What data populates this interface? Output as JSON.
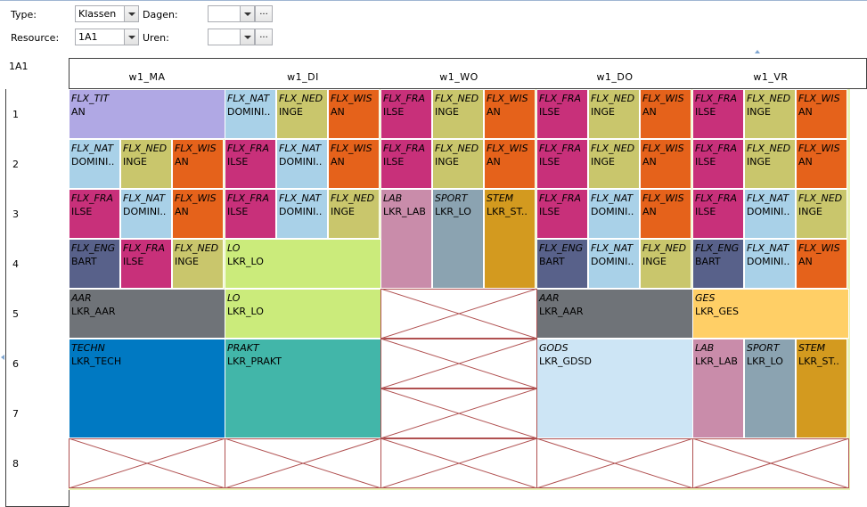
{
  "filters": {
    "type_label": "Type:",
    "type_value": "Klassen",
    "resource_label": "Resource:",
    "resource_value": "1A1",
    "dagen_label": "Dagen:",
    "dagen_value": "",
    "uren_label": "Uren:",
    "uren_value": "",
    "ellipsis": "..."
  },
  "resource_name": "1A1",
  "days": [
    "w1_MA",
    "w1_DI",
    "w1_WO",
    "w1_DO",
    "w1_VR"
  ],
  "hours": [
    "1",
    "2",
    "3",
    "4",
    "5",
    "6",
    "7",
    "8"
  ],
  "colors": {
    "purple": "#b0a8e4",
    "lightblue": "#a9d1e8",
    "olive": "#c9c66c",
    "orange": "#e5621b",
    "magenta": "#c8307a",
    "slate": "#58618a",
    "pink": "#c98caa",
    "greyblue": "#8ba3b1",
    "gold": "#d39a1f",
    "grey": "#6f7378",
    "lime": "#cbeb7b",
    "yellow": "#ffcf66",
    "blue": "#0079c2",
    "teal": "#42b6a9",
    "paleblue": "#cde5f5",
    "cross": "#b05050"
  },
  "lessons": [
    {
      "day": 0,
      "col": 0,
      "span": 3,
      "hour": 0,
      "rows": 1,
      "sub": "FLX_TIT",
      "main": "AN",
      "color": "purple"
    },
    {
      "day": 1,
      "col": 0,
      "span": 1,
      "hour": 0,
      "rows": 1,
      "sub": "FLX_NAT",
      "main": "DOMINI..",
      "color": "lightblue"
    },
    {
      "day": 1,
      "col": 1,
      "span": 1,
      "hour": 0,
      "rows": 1,
      "sub": "FLX_NED",
      "main": "INGE",
      "color": "olive"
    },
    {
      "day": 1,
      "col": 2,
      "span": 1,
      "hour": 0,
      "rows": 1,
      "sub": "FLX_WIS",
      "main": "AN",
      "color": "orange"
    },
    {
      "day": 2,
      "col": 0,
      "span": 1,
      "hour": 0,
      "rows": 1,
      "sub": "FLX_FRA",
      "main": "ILSE",
      "color": "magenta"
    },
    {
      "day": 2,
      "col": 1,
      "span": 1,
      "hour": 0,
      "rows": 1,
      "sub": "FLX_NED",
      "main": "INGE",
      "color": "olive"
    },
    {
      "day": 2,
      "col": 2,
      "span": 1,
      "hour": 0,
      "rows": 1,
      "sub": "FLX_WIS",
      "main": "AN",
      "color": "orange"
    },
    {
      "day": 3,
      "col": 0,
      "span": 1,
      "hour": 0,
      "rows": 1,
      "sub": "FLX_FRA",
      "main": "ILSE",
      "color": "magenta"
    },
    {
      "day": 3,
      "col": 1,
      "span": 1,
      "hour": 0,
      "rows": 1,
      "sub": "FLX_NED",
      "main": "INGE",
      "color": "olive"
    },
    {
      "day": 3,
      "col": 2,
      "span": 1,
      "hour": 0,
      "rows": 1,
      "sub": "FLX_WIS",
      "main": "AN",
      "color": "orange"
    },
    {
      "day": 4,
      "col": 0,
      "span": 1,
      "hour": 0,
      "rows": 1,
      "sub": "FLX_FRA",
      "main": "ILSE",
      "color": "magenta"
    },
    {
      "day": 4,
      "col": 1,
      "span": 1,
      "hour": 0,
      "rows": 1,
      "sub": "FLX_NED",
      "main": "INGE",
      "color": "olive"
    },
    {
      "day": 4,
      "col": 2,
      "span": 1,
      "hour": 0,
      "rows": 1,
      "sub": "FLX_WIS",
      "main": "AN",
      "color": "orange"
    },
    {
      "day": 0,
      "col": 0,
      "span": 1,
      "hour": 1,
      "rows": 1,
      "sub": "FLX_NAT",
      "main": "DOMINI..",
      "color": "lightblue"
    },
    {
      "day": 0,
      "col": 1,
      "span": 1,
      "hour": 1,
      "rows": 1,
      "sub": "FLX_NED",
      "main": "INGE",
      "color": "olive"
    },
    {
      "day": 0,
      "col": 2,
      "span": 1,
      "hour": 1,
      "rows": 1,
      "sub": "FLX_WIS",
      "main": "AN",
      "color": "orange"
    },
    {
      "day": 1,
      "col": 0,
      "span": 1,
      "hour": 1,
      "rows": 1,
      "sub": "FLX_FRA",
      "main": "ILSE",
      "color": "magenta"
    },
    {
      "day": 1,
      "col": 1,
      "span": 1,
      "hour": 1,
      "rows": 1,
      "sub": "FLX_NAT",
      "main": "DOMINI..",
      "color": "lightblue"
    },
    {
      "day": 1,
      "col": 2,
      "span": 1,
      "hour": 1,
      "rows": 1,
      "sub": "FLX_WIS",
      "main": "AN",
      "color": "orange"
    },
    {
      "day": 2,
      "col": 0,
      "span": 1,
      "hour": 1,
      "rows": 1,
      "sub": "FLX_FRA",
      "main": "ILSE",
      "color": "magenta"
    },
    {
      "day": 2,
      "col": 1,
      "span": 1,
      "hour": 1,
      "rows": 1,
      "sub": "FLX_NED",
      "main": "INGE",
      "color": "olive"
    },
    {
      "day": 2,
      "col": 2,
      "span": 1,
      "hour": 1,
      "rows": 1,
      "sub": "FLX_WIS",
      "main": "AN",
      "color": "orange"
    },
    {
      "day": 3,
      "col": 0,
      "span": 1,
      "hour": 1,
      "rows": 1,
      "sub": "FLX_FRA",
      "main": "ILSE",
      "color": "magenta"
    },
    {
      "day": 3,
      "col": 1,
      "span": 1,
      "hour": 1,
      "rows": 1,
      "sub": "FLX_NED",
      "main": "INGE",
      "color": "olive"
    },
    {
      "day": 3,
      "col": 2,
      "span": 1,
      "hour": 1,
      "rows": 1,
      "sub": "FLX_WIS",
      "main": "AN",
      "color": "orange"
    },
    {
      "day": 4,
      "col": 0,
      "span": 1,
      "hour": 1,
      "rows": 1,
      "sub": "FLX_FRA",
      "main": "ILSE",
      "color": "magenta"
    },
    {
      "day": 4,
      "col": 1,
      "span": 1,
      "hour": 1,
      "rows": 1,
      "sub": "FLX_NED",
      "main": "INGE",
      "color": "olive"
    },
    {
      "day": 4,
      "col": 2,
      "span": 1,
      "hour": 1,
      "rows": 1,
      "sub": "FLX_WIS",
      "main": "AN",
      "color": "orange"
    },
    {
      "day": 0,
      "col": 0,
      "span": 1,
      "hour": 2,
      "rows": 1,
      "sub": "FLX_FRA",
      "main": "ILSE",
      "color": "magenta"
    },
    {
      "day": 0,
      "col": 1,
      "span": 1,
      "hour": 2,
      "rows": 1,
      "sub": "FLX_NAT",
      "main": "DOMINI..",
      "color": "lightblue"
    },
    {
      "day": 0,
      "col": 2,
      "span": 1,
      "hour": 2,
      "rows": 1,
      "sub": "FLX_WIS",
      "main": "AN",
      "color": "orange"
    },
    {
      "day": 1,
      "col": 0,
      "span": 1,
      "hour": 2,
      "rows": 1,
      "sub": "FLX_FRA",
      "main": "ILSE",
      "color": "magenta"
    },
    {
      "day": 1,
      "col": 1,
      "span": 1,
      "hour": 2,
      "rows": 1,
      "sub": "FLX_NAT",
      "main": "DOMINI..",
      "color": "lightblue"
    },
    {
      "day": 1,
      "col": 2,
      "span": 1,
      "hour": 2,
      "rows": 1,
      "sub": "FLX_NED",
      "main": "INGE",
      "color": "olive"
    },
    {
      "day": 2,
      "col": 0,
      "span": 1,
      "hour": 2,
      "rows": 2,
      "sub": "LAB",
      "main": "LKR_LAB",
      "color": "pink"
    },
    {
      "day": 2,
      "col": 1,
      "span": 1,
      "hour": 2,
      "rows": 2,
      "sub": "SPORT",
      "main": "LKR_LO",
      "color": "greyblue"
    },
    {
      "day": 2,
      "col": 2,
      "span": 1,
      "hour": 2,
      "rows": 2,
      "sub": "STEM",
      "main": "LKR_ST..",
      "color": "gold"
    },
    {
      "day": 3,
      "col": 0,
      "span": 1,
      "hour": 2,
      "rows": 1,
      "sub": "FLX_FRA",
      "main": "ILSE",
      "color": "magenta"
    },
    {
      "day": 3,
      "col": 1,
      "span": 1,
      "hour": 2,
      "rows": 1,
      "sub": "FLX_NAT",
      "main": "DOMINI..",
      "color": "lightblue"
    },
    {
      "day": 3,
      "col": 2,
      "span": 1,
      "hour": 2,
      "rows": 1,
      "sub": "FLX_WIS",
      "main": "AN",
      "color": "orange"
    },
    {
      "day": 4,
      "col": 0,
      "span": 1,
      "hour": 2,
      "rows": 1,
      "sub": "FLX_FRA",
      "main": "ILSE",
      "color": "magenta"
    },
    {
      "day": 4,
      "col": 1,
      "span": 1,
      "hour": 2,
      "rows": 1,
      "sub": "FLX_NAT",
      "main": "DOMINI..",
      "color": "lightblue"
    },
    {
      "day": 4,
      "col": 2,
      "span": 1,
      "hour": 2,
      "rows": 1,
      "sub": "FLX_NED",
      "main": "INGE",
      "color": "olive"
    },
    {
      "day": 0,
      "col": 0,
      "span": 1,
      "hour": 3,
      "rows": 1,
      "sub": "FLX_ENG",
      "main": "BART",
      "color": "slate"
    },
    {
      "day": 0,
      "col": 1,
      "span": 1,
      "hour": 3,
      "rows": 1,
      "sub": "FLX_FRA",
      "main": "ILSE",
      "color": "magenta"
    },
    {
      "day": 0,
      "col": 2,
      "span": 1,
      "hour": 3,
      "rows": 1,
      "sub": "FLX_NED",
      "main": "INGE",
      "color": "olive"
    },
    {
      "day": 1,
      "col": 0,
      "span": 3,
      "hour": 3,
      "rows": 1,
      "sub": "LO",
      "main": "LKR_LO",
      "color": "lime"
    },
    {
      "day": 3,
      "col": 0,
      "span": 1,
      "hour": 3,
      "rows": 1,
      "sub": "FLX_ENG",
      "main": "BART",
      "color": "slate"
    },
    {
      "day": 3,
      "col": 1,
      "span": 1,
      "hour": 3,
      "rows": 1,
      "sub": "FLX_NAT",
      "main": "DOMINI..",
      "color": "lightblue"
    },
    {
      "day": 3,
      "col": 2,
      "span": 1,
      "hour": 3,
      "rows": 1,
      "sub": "FLX_NED",
      "main": "INGE",
      "color": "olive"
    },
    {
      "day": 4,
      "col": 0,
      "span": 1,
      "hour": 3,
      "rows": 1,
      "sub": "FLX_ENG",
      "main": "BART",
      "color": "slate"
    },
    {
      "day": 4,
      "col": 1,
      "span": 1,
      "hour": 3,
      "rows": 1,
      "sub": "FLX_NAT",
      "main": "DOMINI..",
      "color": "lightblue"
    },
    {
      "day": 4,
      "col": 2,
      "span": 1,
      "hour": 3,
      "rows": 1,
      "sub": "FLX_WIS",
      "main": "AN",
      "color": "orange"
    },
    {
      "day": 0,
      "col": 0,
      "span": 3,
      "hour": 4,
      "rows": 1,
      "sub": "AAR",
      "main": "LKR_AAR",
      "color": "grey"
    },
    {
      "day": 1,
      "col": 0,
      "span": 3,
      "hour": 4,
      "rows": 1,
      "sub": "LO",
      "main": "LKR_LO",
      "color": "lime"
    },
    {
      "day": 3,
      "col": 0,
      "span": 3,
      "hour": 4,
      "rows": 1,
      "sub": "AAR",
      "main": "LKR_AAR",
      "color": "grey"
    },
    {
      "day": 4,
      "col": 0,
      "span": 3,
      "hour": 4,
      "rows": 1,
      "sub": "GES",
      "main": "LKR_GES",
      "color": "yellow"
    },
    {
      "day": 0,
      "col": 0,
      "span": 3,
      "hour": 5,
      "rows": 2,
      "sub": "TECHN",
      "main": "LKR_TECH",
      "color": "blue"
    },
    {
      "day": 1,
      "col": 0,
      "span": 3,
      "hour": 5,
      "rows": 2,
      "sub": "PRAKT",
      "main": "LKR_PRAKT",
      "color": "teal"
    },
    {
      "day": 3,
      "col": 0,
      "span": 3,
      "hour": 5,
      "rows": 2,
      "sub": "GODS",
      "main": "LKR_GDSD",
      "color": "paleblue"
    },
    {
      "day": 4,
      "col": 0,
      "span": 1,
      "hour": 5,
      "rows": 2,
      "sub": "LAB",
      "main": "LKR_LAB",
      "color": "pink"
    },
    {
      "day": 4,
      "col": 1,
      "span": 1,
      "hour": 5,
      "rows": 2,
      "sub": "SPORT",
      "main": "LKR_LO",
      "color": "greyblue"
    },
    {
      "day": 4,
      "col": 2,
      "span": 1,
      "hour": 5,
      "rows": 2,
      "sub": "STEM",
      "main": "LKR_ST..",
      "color": "gold"
    }
  ],
  "blocked": [
    {
      "day": 2,
      "hour": 4,
      "rows": 1
    },
    {
      "day": 2,
      "hour": 5,
      "rows": 1
    },
    {
      "day": 2,
      "hour": 6,
      "rows": 1
    },
    {
      "day": 0,
      "hour": 7,
      "rows": 1
    },
    {
      "day": 1,
      "hour": 7,
      "rows": 1
    },
    {
      "day": 2,
      "hour": 7,
      "rows": 1
    },
    {
      "day": 3,
      "hour": 7,
      "rows": 1
    },
    {
      "day": 4,
      "hour": 7,
      "rows": 1
    }
  ]
}
